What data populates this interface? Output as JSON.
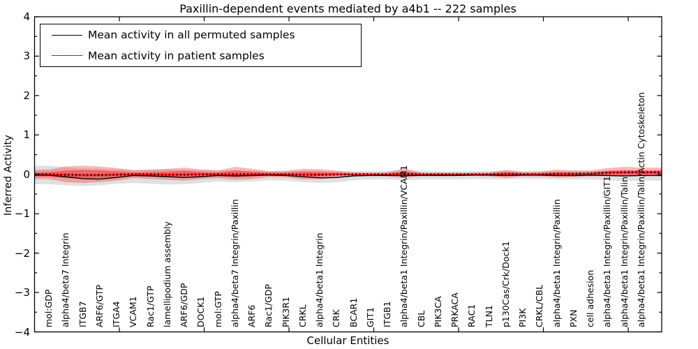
{
  "title": "Paxillin-dependent events mediated by a4b1 -- 222 samples",
  "legend": {
    "items": [
      {
        "label": "Mean activity in all permuted samples",
        "color": "#000000"
      },
      {
        "label": "Mean activity in patient samples",
        "color": "#ff0000"
      }
    ]
  },
  "chart_data": {
    "type": "line",
    "title": "Paxillin-dependent events mediated by a4b1 -- 222 samples",
    "xlabel": "Cellular Entities",
    "ylabel": "Inferred Activity",
    "ylim": [
      -4,
      4
    ],
    "yticks": [
      4,
      3,
      2,
      1,
      0,
      -1,
      -2,
      -3,
      -4
    ],
    "ytick_labels": [
      "4",
      "3",
      "2",
      "1",
      "0",
      "−1",
      "−2",
      "−3",
      "−4"
    ],
    "grid": false,
    "legend_position": "upper left",
    "categories": [
      "mol:GDP",
      "alpha4/beta7 Integrin",
      "ITGB7",
      "ARF6/GTP",
      "ITGA4",
      "VCAM1",
      "Rac1/GTP",
      "lamellipodium assembly",
      "ARF6/GDP",
      "DOCK1",
      "mol:GTP",
      "alpha4/beta7 Integrin/Paxillin",
      "ARF6",
      "Rac1/GDP",
      "PIK3R1",
      "CRKL",
      "alpha4/beta1 Integrin",
      "CRK",
      "BCAR1",
      "GIT1",
      "ITGB1",
      "alpha4/beta1 Integrin/Paxillin/VCAM1",
      "CBL",
      "PIK3CA",
      "PRKACA",
      "RAC1",
      "TLN1",
      "p130Cas/Crk/Dock1",
      "PI3K",
      "CRKL/CBL",
      "alpha4/beta1 Integrin/Paxillin",
      "PXN",
      "cell adhesion",
      "alpha4/beta1 Integrin/Paxillin/GIT1",
      "alpha4/beta1 Integrin/Paxillin/Talin",
      "alpha4/beta1 Integrin/Paxillin/Talin/Actin Cytoskeleton"
    ],
    "series": [
      {
        "name": "Mean activity in all permuted samples",
        "color": "#000000",
        "width": 1.4,
        "values": [
          -0.02,
          -0.06,
          -0.11,
          -0.12,
          -0.08,
          -0.03,
          -0.04,
          -0.06,
          -0.08,
          -0.06,
          -0.03,
          -0.04,
          -0.03,
          -0.02,
          -0.03,
          -0.06,
          -0.09,
          -0.08,
          -0.04,
          -0.03,
          -0.03,
          -0.03,
          -0.03,
          -0.03,
          -0.03,
          -0.02,
          -0.02,
          -0.03,
          -0.02,
          -0.02,
          -0.03,
          -0.03,
          -0.02,
          -0.03,
          -0.04,
          -0.03
        ]
      },
      {
        "name": "Mean activity in patient samples",
        "color": "#ff0000",
        "width": 1.6,
        "values": [
          0,
          -0.01,
          -0.02,
          -0.02,
          -0.01,
          0,
          0,
          -0.01,
          -0.01,
          0,
          0,
          0,
          0,
          0,
          0,
          -0.01,
          -0.01,
          0,
          0,
          0,
          0,
          0.01,
          0,
          0,
          0,
          0,
          0,
          0.01,
          0,
          0,
          0.01,
          0.01,
          0.02,
          0.04,
          0.05,
          0.05
        ]
      }
    ],
    "marker_overlay": {
      "name": "patient mean tick markers",
      "color": "#000000",
      "style": "vertical-dash",
      "follows": "Mean activity in patient samples"
    },
    "bands": [
      {
        "name": "permuted samples range",
        "color": "rgba(0,0,0,0.12)",
        "upper": [
          0.22,
          0.18,
          0.15,
          0.14,
          0.13,
          0.12,
          0.12,
          0.13,
          0.12,
          0.11,
          0.1,
          0.1,
          0.09,
          0.08,
          0.08,
          0.09,
          0.09,
          0.08,
          0.08,
          0.08,
          0.09,
          0.1,
          0.09,
          0.08,
          0.08,
          0.08,
          0.08,
          0.08,
          0.08,
          0.08,
          0.08,
          0.08,
          0.08,
          0.09,
          0.09,
          0.1
        ],
        "lower": [
          -0.25,
          -0.28,
          -0.3,
          -0.28,
          -0.24,
          -0.22,
          -0.24,
          -0.26,
          -0.25,
          -0.22,
          -0.18,
          -0.2,
          -0.18,
          -0.15,
          -0.16,
          -0.2,
          -0.22,
          -0.2,
          -0.15,
          -0.13,
          -0.13,
          -0.15,
          -0.13,
          -0.13,
          -0.13,
          -0.12,
          -0.12,
          -0.13,
          -0.12,
          -0.12,
          -0.13,
          -0.13,
          -0.13,
          -0.15,
          -0.17,
          -0.16
        ]
      },
      {
        "name": "patient samples outer range",
        "color": "rgba(255,0,0,0.28)",
        "upper": [
          0.12,
          0.2,
          0.22,
          0.2,
          0.16,
          0.1,
          0.12,
          0.14,
          0.17,
          0.12,
          0.1,
          0.19,
          0.14,
          0.08,
          0.09,
          0.14,
          0.13,
          0.09,
          0.05,
          0.04,
          0.05,
          0.15,
          0.04,
          0.04,
          0.04,
          0.04,
          0.05,
          0.12,
          0.06,
          0.07,
          0.12,
          0.1,
          0.1,
          0.16,
          0.19,
          0.17
        ],
        "lower": [
          -0.12,
          -0.2,
          -0.22,
          -0.2,
          -0.16,
          -0.1,
          -0.12,
          -0.14,
          -0.16,
          -0.12,
          -0.1,
          -0.14,
          -0.12,
          -0.07,
          -0.08,
          -0.13,
          -0.12,
          -0.09,
          -0.05,
          -0.04,
          -0.05,
          -0.09,
          -0.04,
          -0.04,
          -0.04,
          -0.04,
          -0.05,
          -0.09,
          -0.05,
          -0.05,
          -0.08,
          -0.07,
          -0.05,
          -0.05,
          -0.05,
          -0.04
        ]
      },
      {
        "name": "patient samples inner range",
        "color": "rgba(255,0,0,0.38)",
        "upper": [
          0.06,
          0.1,
          0.11,
          0.1,
          0.08,
          0.05,
          0.06,
          0.07,
          0.09,
          0.06,
          0.05,
          0.1,
          0.07,
          0.04,
          0.04,
          0.07,
          0.06,
          0.04,
          0.02,
          0.02,
          0.02,
          0.07,
          0.02,
          0.02,
          0.02,
          0.02,
          0.02,
          0.06,
          0.03,
          0.03,
          0.06,
          0.05,
          0.05,
          0.09,
          0.11,
          0.1
        ],
        "lower": [
          -0.06,
          -0.1,
          -0.11,
          -0.1,
          -0.08,
          -0.05,
          -0.06,
          -0.07,
          -0.08,
          -0.06,
          -0.05,
          -0.07,
          -0.06,
          -0.03,
          -0.04,
          -0.06,
          -0.06,
          -0.04,
          -0.02,
          -0.02,
          -0.02,
          -0.05,
          -0.02,
          -0.02,
          -0.02,
          -0.02,
          -0.02,
          -0.04,
          -0.02,
          -0.02,
          -0.04,
          -0.03,
          -0.02,
          -0.02,
          -0.02,
          -0.01
        ]
      }
    ]
  }
}
